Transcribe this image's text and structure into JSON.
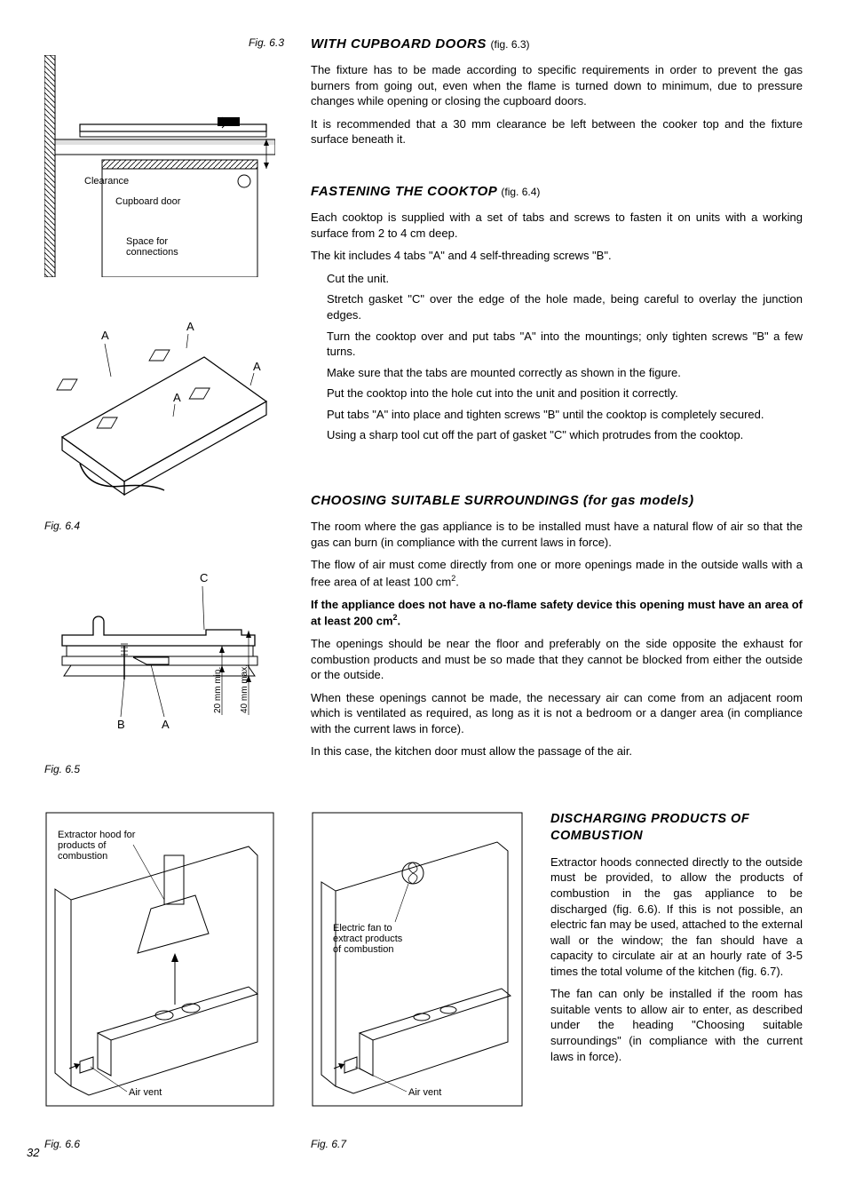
{
  "pageNumber": "32",
  "figures": {
    "f63": {
      "caption": "Fig. 6.3",
      "labels": {
        "clearance": "Clearance",
        "cupboardDoor": "Cupboard door",
        "space": "Space for connections"
      }
    },
    "f64": {
      "caption": "Fig. 6.4",
      "A": "A"
    },
    "f65": {
      "caption": "Fig. 6.5",
      "A": "A",
      "B": "B",
      "C": "C",
      "dim1": "20 mm min.",
      "dim2": "40 mm max."
    },
    "f66": {
      "caption": "Fig. 6.6",
      "hood": "Extractor hood for products of combustion",
      "vent": "Air vent"
    },
    "f67": {
      "caption": "Fig. 6.7",
      "fan": "Electric fan to extract products of combustion",
      "vent": "Air vent"
    }
  },
  "sections": {
    "cupboard": {
      "title": "WITH CUPBOARD DOORS",
      "ref": "(fig. 6.3)",
      "p1": "The fixture has to be made according to specific requirements in order to prevent the gas burners from going out, even when the flame is turned down to minimum, due to pressure changes while opening or closing the cupboard doors.",
      "p2": "It is recommended that a 30 mm clearance be left between the cooker top and the fixture surface beneath it."
    },
    "fastening": {
      "title": "FASTENING THE COOKTOP",
      "ref": "(fig. 6.4)",
      "p1": "Each cooktop is supplied with a set of tabs and screws to fasten it on units with a working surface from 2 to 4 cm deep.",
      "p2": "The kit includes 4 tabs \"A\" and 4 self-threading screws \"B\".",
      "items": [
        "Cut the unit.",
        "Stretch gasket \"C\" over the edge of the hole made, being careful to overlay the junction edges.",
        "Turn the cooktop over and put tabs \"A\" into the mountings; only tighten screws \"B\" a few turns.",
        "Make sure that the tabs are mounted correctly as shown in the figure.",
        "Put the cooktop into the hole cut into the unit and position it correctly.",
        "Put tabs \"A\" into place and tighten screws \"B\" until the cooktop is completely secured.",
        "Using a sharp tool cut off the part of gasket \"C\" which protrudes from the cooktop."
      ]
    },
    "surroundings": {
      "title": "CHOOSING SUITABLE SURROUNDINGS (for gas models)",
      "p1": "The room where the gas appliance is to be installed must have a natural flow of air so that the gas can burn (in compliance with the current laws in force).",
      "p2a": "The flow of air must come directly from one or more openings made in the outside walls with a free area of at least 100 cm",
      "p2b": ".",
      "p3a": "If the appliance does not have a no-flame safety device this opening must have an area of at least 200 cm",
      "p3b": ".",
      "p4": "The openings should be near the floor and preferably on the side opposite the exhaust for combustion products and must be so made that they cannot be blocked from either the outside or the outside.",
      "p5": "When these openings cannot be made, the necessary air can come from an adjacent room which is ventilated as required, as long as it is not a bedroom or a danger area (in compliance with the current laws in force).",
      "p6": "In this case, the kitchen door must allow the passage of the air."
    },
    "discharging": {
      "title": "DISCHARGING PRODUCTS OF COMBUSTION",
      "p1": "Extractor hoods connected directly to the outside must be provided, to allow the products of combustion in the gas appliance to be discharged (fig. 6.6). If this is not possible, an electric fan may be used, attached to the external wall or the window; the fan should have a capacity to circulate air at an hourly rate of 3-5 times the total volume of the kitchen (fig. 6.7).",
      "p2": "The fan can only be installed if the room has suitable vents to allow air to enter, as described under the heading \"Choosing suitable surroundings\" (in compliance with the current laws in force)."
    }
  }
}
